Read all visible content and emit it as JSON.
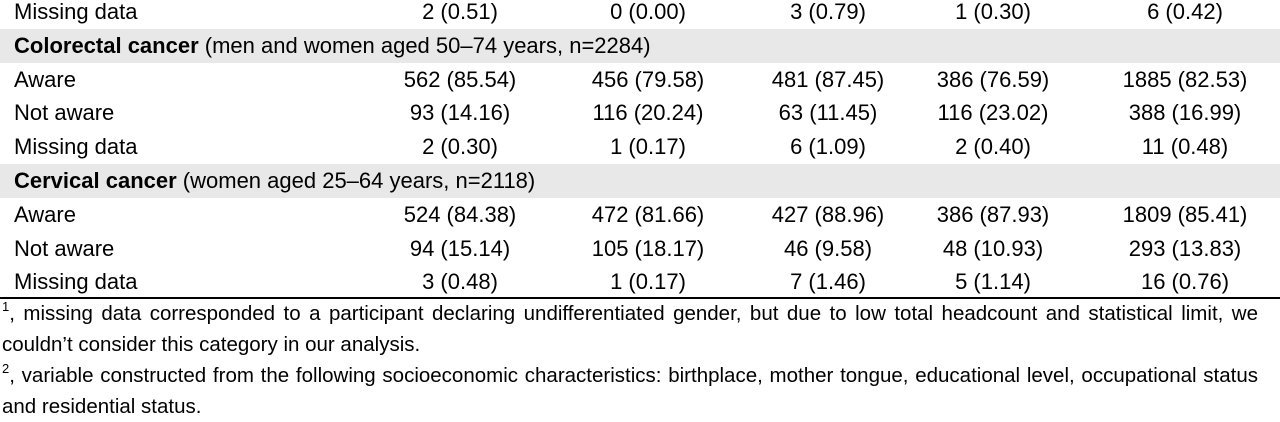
{
  "table": {
    "rows": [
      {
        "label": "Missing data",
        "cells": [
          "2 (0.51)",
          "0 (0.00)",
          "3 (0.79)",
          "1 (0.30)",
          "6 (0.42)"
        ]
      },
      {
        "title": "Colorectal cancer",
        "subtitle": "(men and women aged 50–74 years, n=2284)"
      },
      {
        "label": "Aware",
        "cells": [
          "562 (85.54)",
          "456 (79.58)",
          "481 (87.45)",
          "386 (76.59)",
          "1885 (82.53)"
        ]
      },
      {
        "label": "Not aware",
        "cells": [
          "93 (14.16)",
          "116 (20.24)",
          "63 (11.45)",
          "116 (23.02)",
          "388 (16.99)"
        ]
      },
      {
        "label": "Missing data",
        "cells": [
          "2 (0.30)",
          "1 (0.17)",
          "6 (1.09)",
          "2 (0.40)",
          "11 (0.48)"
        ]
      },
      {
        "title": "Cervical cancer",
        "subtitle": "(women aged 25–64 years, n=2118)"
      },
      {
        "label": "Aware",
        "cells": [
          "524 (84.38)",
          "472 (81.66)",
          "427 (88.96)",
          "386 (87.93)",
          "1809 (85.41)"
        ]
      },
      {
        "label": "Not aware",
        "cells": [
          "94 (15.14)",
          "105 (18.17)",
          "46 (9.58)",
          "48 (10.93)",
          "293 (13.83)"
        ]
      },
      {
        "label": "Missing data",
        "cells": [
          "3 (0.48)",
          "1 (0.17)",
          "7 (1.46)",
          "5 (1.14)",
          "16 (0.76)"
        ]
      }
    ]
  },
  "footnotes": [
    {
      "mark": "1",
      "text": ", missing data corresponded to a participant declaring undifferentiated gender, but due to low total headcount and statistical limit, we couldn’t consider this category in our analysis."
    },
    {
      "mark": "2",
      "text": ", variable constructed from the following socioeconomic characteristics: birthplace, mother tongue, educational level, occupational status and residential status."
    }
  ]
}
